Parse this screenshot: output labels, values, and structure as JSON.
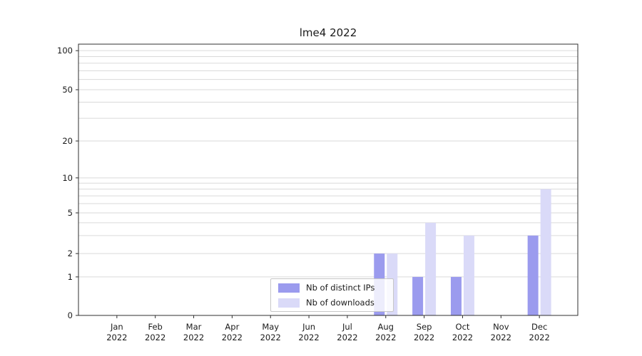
{
  "chart_data": {
    "type": "bar",
    "title": "lme4 2022",
    "categories": [
      "Jan",
      "Feb",
      "Mar",
      "Apr",
      "May",
      "Jun",
      "Jul",
      "Aug",
      "Sep",
      "Oct",
      "Nov",
      "Dec"
    ],
    "category_year": "2022",
    "series": [
      {
        "name": "Nb of distinct IPs",
        "key": "distinct-ips",
        "color": "#9b9bee",
        "values": [
          0,
          0,
          0,
          0,
          0,
          0,
          0,
          2,
          1,
          1,
          0,
          3
        ]
      },
      {
        "name": "Nb of downloads",
        "key": "downloads",
        "color": "#dadaf8",
        "values": [
          0,
          0,
          0,
          0,
          0,
          0,
          0,
          2,
          4,
          3,
          0,
          8
        ]
      }
    ],
    "yscale": "symlog",
    "yticks": [
      0,
      1,
      2,
      5,
      10,
      20,
      50,
      100
    ],
    "minor_gridlines": [
      3,
      4,
      6,
      7,
      8,
      9,
      30,
      40,
      60,
      70,
      80,
      90
    ],
    "ylim": [
      0,
      110
    ],
    "grid": true,
    "legend_position": "lower-center-inside"
  },
  "colors": {
    "grid": "#dadada",
    "axis": "#2f2f2f",
    "text": "#1a1a1a"
  }
}
